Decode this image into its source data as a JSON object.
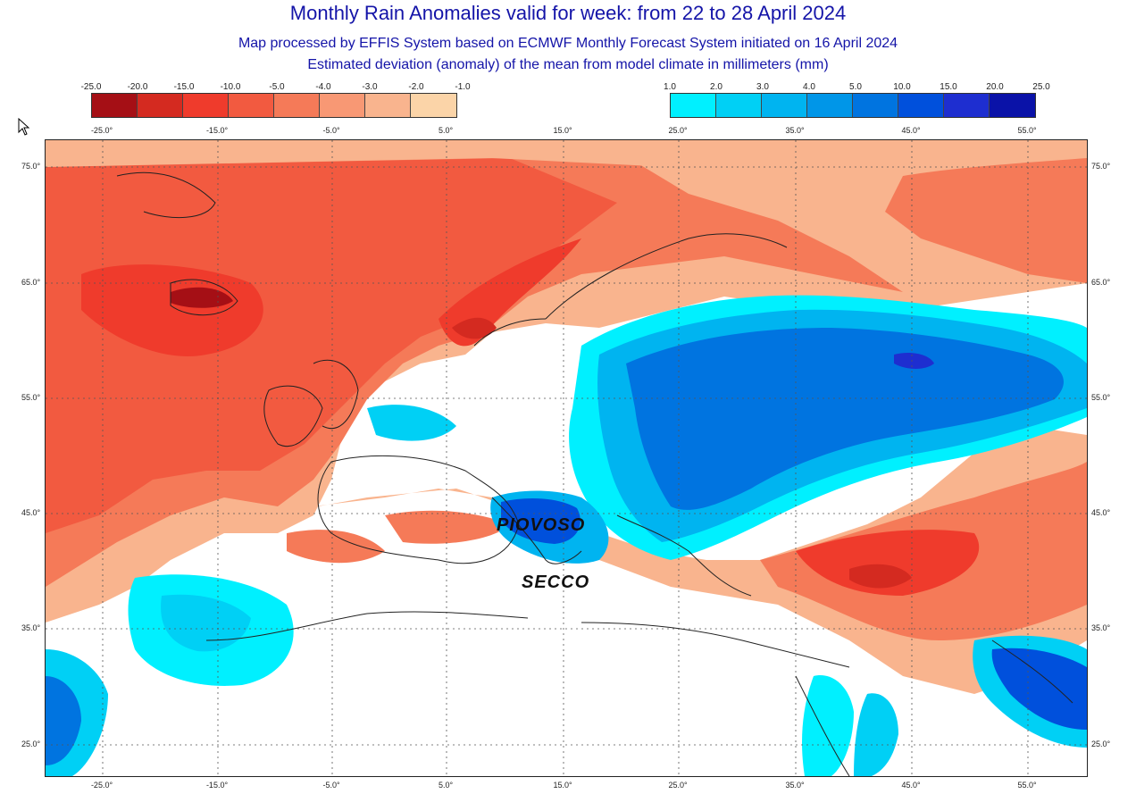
{
  "title": "Monthly Rain Anomalies valid for week: from 22 to 28 April 2024",
  "subtitle1": "Map processed by EFFIS System based on ECMWF Monthly Forecast System initiated on 16 April 2024",
  "subtitle2": "Estimated deviation (anomaly) of the mean from model climate in millimeters (mm)",
  "legend_negative": {
    "ticks": [
      "-25.0",
      "-20.0",
      "-15.0",
      "-10.0",
      "-5.0",
      "-4.0",
      "-3.0",
      "-2.0",
      "-1.0"
    ],
    "colors": [
      "#a50f15",
      "#d42a20",
      "#ef3b2c",
      "#f25a40",
      "#f57a58",
      "#f89874",
      "#f9b48e",
      "#fbd4a8"
    ]
  },
  "legend_positive": {
    "ticks": [
      "1.0",
      "2.0",
      "3.0",
      "4.0",
      "5.0",
      "10.0",
      "15.0",
      "20.0",
      "25.0"
    ],
    "colors": [
      "#00f0ff",
      "#00d0f5",
      "#00b4f0",
      "#0096e8",
      "#0074e0",
      "#0050dc",
      "#1e2ed0",
      "#0a12a8"
    ]
  },
  "lon_labels": [
    "-25.0°",
    "-15.0°",
    "-5.0°",
    "5.0°",
    "15.0°",
    "25.0°",
    "35.0°",
    "45.0°",
    "55.0°"
  ],
  "lat_labels": [
    "75.0°",
    "65.0°",
    "55.0°",
    "45.0°",
    "35.0°",
    "25.0°"
  ],
  "annotations": {
    "wet": "PIOVOSO",
    "dry": "SECCO"
  }
}
